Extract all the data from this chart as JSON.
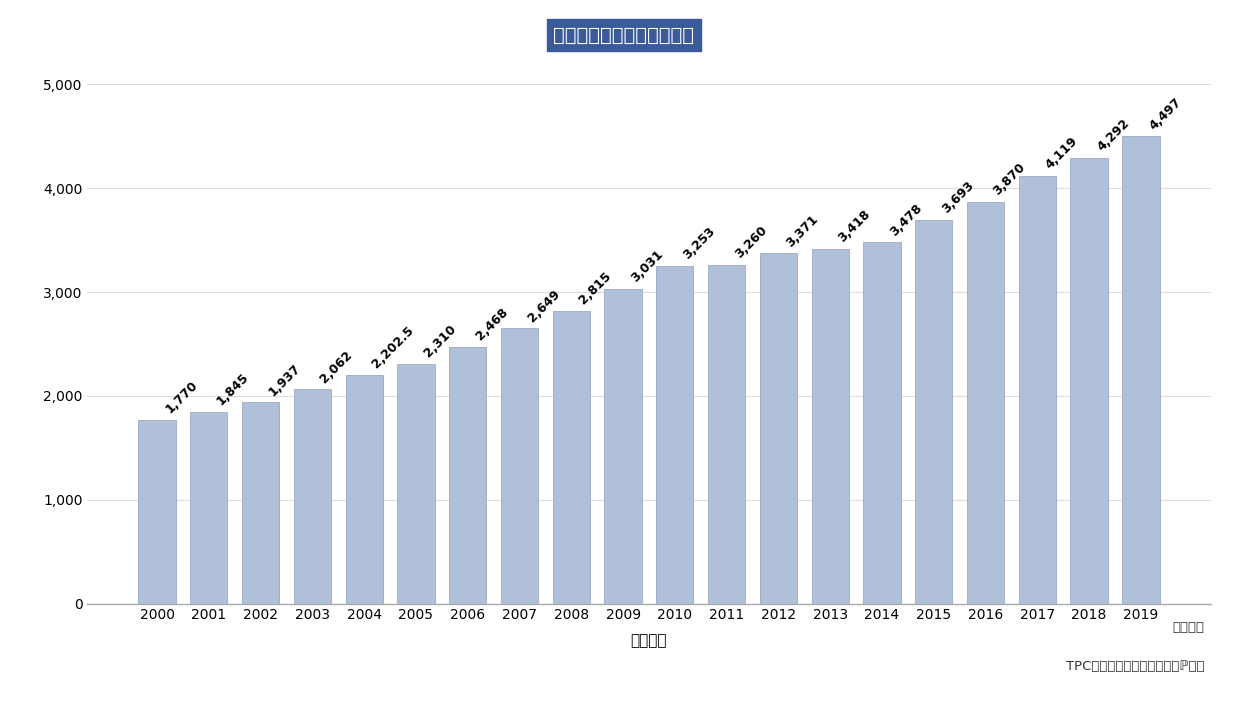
{
  "years": [
    "2000",
    "2001",
    "2002",
    "2003",
    "2004",
    "2005",
    "2006",
    "2007",
    "2008",
    "2009",
    "2010",
    "2011",
    "2012",
    "2013",
    "2014",
    "2015",
    "2016",
    "2017",
    "2018",
    "2019"
  ],
  "values": [
    1770,
    1845,
    1937,
    2062,
    2202.5,
    2310,
    2468,
    2649,
    2815,
    3031,
    3253,
    3260,
    3371,
    3418,
    3478,
    3693,
    3870,
    4119,
    4292,
    4497
  ],
  "bar_color_top": "#c8d4e8",
  "bar_color_mid": "#b0c0d8",
  "bar_color_side": "#8898b8",
  "bar_edge_color": "#9aaac8",
  "title": "通販化粧品の市場規模推移",
  "title_bg_color": "#3a5a9a",
  "title_text_color": "#ffffff",
  "xlabel": "《年度》",
  "xlabel2": "（見込）",
  "footer": "TPCマーケティングリサーチℙ調べ",
  "ylim": [
    0,
    5000
  ],
  "yticks": [
    0,
    1000,
    2000,
    3000,
    4000,
    5000
  ],
  "bg_color": "#ffffff",
  "plot_bg_color": "#f0f4fa",
  "grid_color": "#dddddd",
  "label_fontsize": 9,
  "axis_tick_fontsize": 10,
  "title_fontsize": 14,
  "xlabel_fontsize": 11
}
